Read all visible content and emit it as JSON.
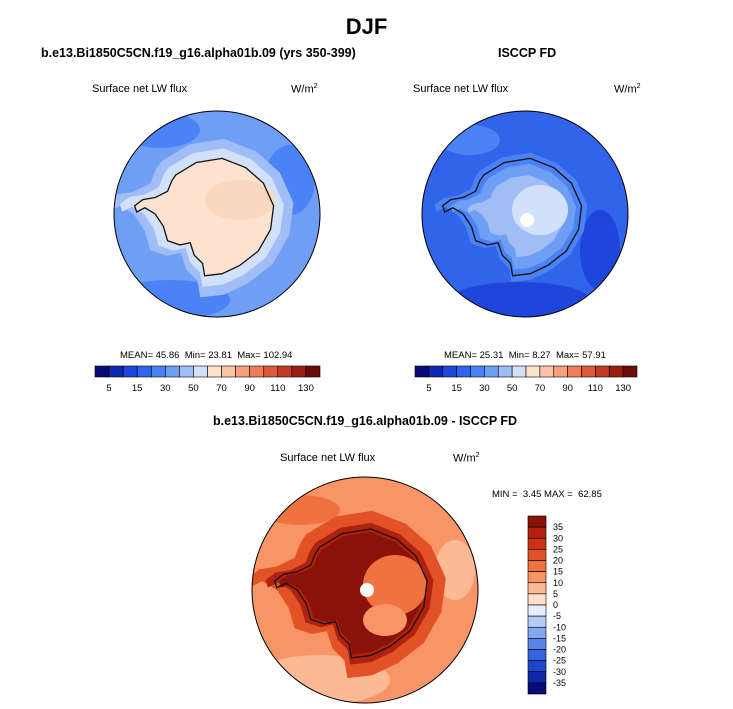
{
  "figure": {
    "title": "DJF"
  },
  "chart_data": [
    {
      "type": "heatmap",
      "title": "b.e13.Bi1850C5CN.f19_g16.alpha01b.09 (yrs 350-399)",
      "variable": "Surface net LW flux",
      "units": "W/m",
      "units_exp": "2",
      "stats": {
        "mean": "45.86",
        "min": "23.81",
        "max": "102.94"
      },
      "mean_label": "MEAN=",
      "min_label": "Min=",
      "max_label": "Max=",
      "colorbar": {
        "levels": [
          5,
          10,
          15,
          20,
          30,
          40,
          50,
          60,
          70,
          80,
          90,
          100,
          110,
          120,
          130
        ],
        "labels": [
          "5",
          "15",
          "30",
          "50",
          "70",
          "90",
          "110",
          "130"
        ]
      }
    },
    {
      "type": "heatmap",
      "title": "ISCCP FD",
      "variable": "Surface net LW flux",
      "units": "W/m",
      "units_exp": "2",
      "stats": {
        "mean": "25.31",
        "min": "8.27",
        "max": "57.91"
      },
      "mean_label": "MEAN=",
      "min_label": "Min=",
      "max_label": "Max=",
      "colorbar": {
        "levels": [
          5,
          10,
          15,
          20,
          30,
          40,
          50,
          60,
          70,
          80,
          90,
          100,
          110,
          120,
          130
        ],
        "labels": [
          "5",
          "15",
          "30",
          "50",
          "70",
          "90",
          "110",
          "130"
        ]
      }
    },
    {
      "type": "heatmap",
      "title": "b.e13.Bi1850C5CN.f19_g16.alpha01b.09 - ISCCP FD",
      "variable": "Surface net LW flux",
      "units": "W/m",
      "units_exp": "2",
      "stats": {
        "min": "3.45",
        "max": "62.85"
      },
      "min_label": "MIN =",
      "max_label": "MAX =",
      "colorbar": {
        "levels": [
          35,
          30,
          25,
          20,
          15,
          10,
          5,
          0,
          -5,
          -10,
          -15,
          -20,
          -25,
          -30,
          -35
        ],
        "labels": [
          "35",
          "30",
          "25",
          "20",
          "15",
          "10",
          "5",
          "0",
          "-5",
          "-10",
          "-15",
          "-20",
          "-25",
          "-30",
          "-35"
        ]
      }
    }
  ],
  "colors": {
    "seq": [
      "#0a0a78",
      "#0f28b4",
      "#1e46dc",
      "#3264eb",
      "#4b82f5",
      "#6e9ff5",
      "#a0bef5",
      "#d2e1fa",
      "#fde2cf",
      "#fbc4a6",
      "#f7a07e",
      "#f07d58",
      "#e0593a",
      "#c53a25",
      "#9a1f12",
      "#6a0c0a"
    ],
    "div": [
      "#8a1208",
      "#b0220f",
      "#cc3316",
      "#e25226",
      "#f0723f",
      "#f89566",
      "#fbb994",
      "#fde0c8",
      "#e6eefa",
      "#b4ccf5",
      "#84a8f0",
      "#5a86eb",
      "#3764e1",
      "#1e46cc",
      "#0f28a8",
      "#0a0a78"
    ]
  }
}
